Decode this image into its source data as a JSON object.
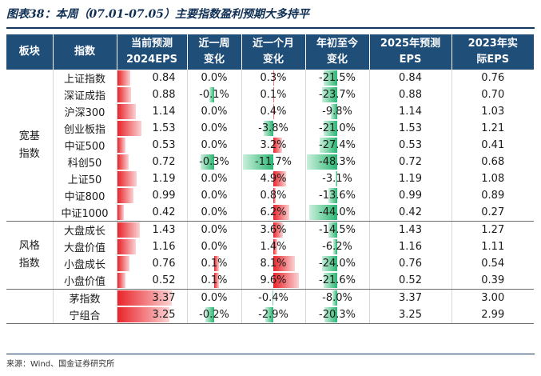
{
  "title": "图表38：本周（07.01-07.05）主要指数盈利预期大多持平",
  "headers": {
    "block": "板块",
    "index": "指数",
    "cur_eps": [
      "当前预测",
      "2024EPS"
    ],
    "wk": [
      "近一周",
      "变化"
    ],
    "mo": [
      "近一个月",
      "变化"
    ],
    "ytd": [
      "年初至今",
      "变化"
    ],
    "eps25": [
      "2025年预测",
      "EPS"
    ],
    "eps23": [
      "2023年实",
      "际EPS"
    ]
  },
  "groups": [
    {
      "label": [
        "宽基",
        "指数"
      ],
      "rows": [
        {
          "name": "上证指数",
          "eps24": "0.84",
          "eps24_v": 0.84,
          "wk": "0.0%",
          "wk_v": 0.0,
          "mo": "0.3%",
          "mo_v": 0.3,
          "ytd": "-21.5%",
          "ytd_v": -21.5,
          "eps25": "0.84",
          "eps23": "0.76"
        },
        {
          "name": "深证成指",
          "eps24": "0.88",
          "eps24_v": 0.88,
          "wk": "-0.1%",
          "wk_v": -0.1,
          "mo": "0.1%",
          "mo_v": 0.1,
          "ytd": "-23.7%",
          "ytd_v": -23.7,
          "eps25": "0.88",
          "eps23": "0.70"
        },
        {
          "name": "沪深300",
          "eps24": "1.14",
          "eps24_v": 1.14,
          "wk": "0.0%",
          "wk_v": 0.0,
          "mo": "0.4%",
          "mo_v": 0.4,
          "ytd": "-9.8%",
          "ytd_v": -9.8,
          "eps25": "1.14",
          "eps23": "1.03"
        },
        {
          "name": "创业板指",
          "eps24": "1.53",
          "eps24_v": 1.53,
          "wk": "0.0%",
          "wk_v": 0.0,
          "mo": "-3.8%",
          "mo_v": -3.8,
          "ytd": "-21.0%",
          "ytd_v": -21.0,
          "eps25": "1.53",
          "eps23": "1.21"
        },
        {
          "name": "中证500",
          "eps24": "0.53",
          "eps24_v": 0.53,
          "wk": "0.0%",
          "wk_v": 0.0,
          "mo": "3.2%",
          "mo_v": 3.2,
          "ytd": "-27.4%",
          "ytd_v": -27.4,
          "eps25": "0.53",
          "eps23": "0.41"
        },
        {
          "name": "科创50",
          "eps24": "0.72",
          "eps24_v": 0.72,
          "wk": "-0.3%",
          "wk_v": -0.3,
          "mo": "-11.7%",
          "mo_v": -11.7,
          "ytd": "-48.3%",
          "ytd_v": -48.3,
          "eps25": "0.72",
          "eps23": "0.68"
        },
        {
          "name": "上证50",
          "eps24": "1.19",
          "eps24_v": 1.19,
          "wk": "0.0%",
          "wk_v": 0.0,
          "mo": "4.9%",
          "mo_v": 4.9,
          "ytd": "-3.1%",
          "ytd_v": -3.1,
          "eps25": "1.19",
          "eps23": "1.08"
        },
        {
          "name": "中证800",
          "eps24": "0.99",
          "eps24_v": 0.99,
          "wk": "0.0%",
          "wk_v": 0.0,
          "mo": "0.8%",
          "mo_v": 0.8,
          "ytd": "-13.6%",
          "ytd_v": -13.6,
          "eps25": "0.99",
          "eps23": "0.89"
        },
        {
          "name": "中证1000",
          "eps24": "0.42",
          "eps24_v": 0.42,
          "wk": "0.0%",
          "wk_v": 0.0,
          "mo": "6.2%",
          "mo_v": 6.2,
          "ytd": "-44.0%",
          "ytd_v": -44.0,
          "eps25": "0.42",
          "eps23": "0.27"
        }
      ]
    },
    {
      "label": [
        "风格",
        "指数"
      ],
      "rows": [
        {
          "name": "大盘成长",
          "eps24": "1.43",
          "eps24_v": 1.43,
          "wk": "0.0%",
          "wk_v": 0.0,
          "mo": "3.6%",
          "mo_v": 3.6,
          "ytd": "-14.5%",
          "ytd_v": -14.5,
          "eps25": "1.43",
          "eps23": "1.27"
        },
        {
          "name": "大盘价值",
          "eps24": "1.16",
          "eps24_v": 1.16,
          "wk": "0.0%",
          "wk_v": 0.0,
          "mo": "1.4%",
          "mo_v": 1.4,
          "ytd": "-6.2%",
          "ytd_v": -6.2,
          "eps25": "1.16",
          "eps23": "1.11"
        },
        {
          "name": "小盘成长",
          "eps24": "0.76",
          "eps24_v": 0.76,
          "wk": "0.1%",
          "wk_v": 0.1,
          "mo": "8.1%",
          "mo_v": 8.1,
          "ytd": "-24.0%",
          "ytd_v": -24.0,
          "eps25": "0.76",
          "eps23": "0.54"
        },
        {
          "name": "小盘价值",
          "eps24": "0.52",
          "eps24_v": 0.52,
          "wk": "0.1%",
          "wk_v": 0.1,
          "mo": "9.6%",
          "mo_v": 9.6,
          "ytd": "-21.6%",
          "ytd_v": -21.6,
          "eps25": "0.52",
          "eps23": "0.39"
        }
      ]
    },
    {
      "label": [
        "",
        ""
      ],
      "rows": [
        {
          "name": "茅指数",
          "eps24": "3.37",
          "eps24_v": 3.37,
          "wk": "0.0%",
          "wk_v": 0.0,
          "mo": "-0.4%",
          "mo_v": -0.4,
          "ytd": "-8.0%",
          "ytd_v": -8.0,
          "eps25": "3.37",
          "eps23": "3.00"
        },
        {
          "name": "宁组合",
          "eps24": "3.25",
          "eps24_v": 3.25,
          "wk": "-0.2%",
          "wk_v": -0.2,
          "mo": "-2.9%",
          "mo_v": -2.9,
          "ytd": "-20.3%",
          "ytd_v": -20.3,
          "eps25": "3.25",
          "eps23": "2.99"
        }
      ]
    }
  ],
  "colors": {
    "positive": "#e8242a",
    "negative": "#2bb673",
    "header_bg": "#1f4e79"
  },
  "footnote": "来源：Wind、国金证券研究所"
}
